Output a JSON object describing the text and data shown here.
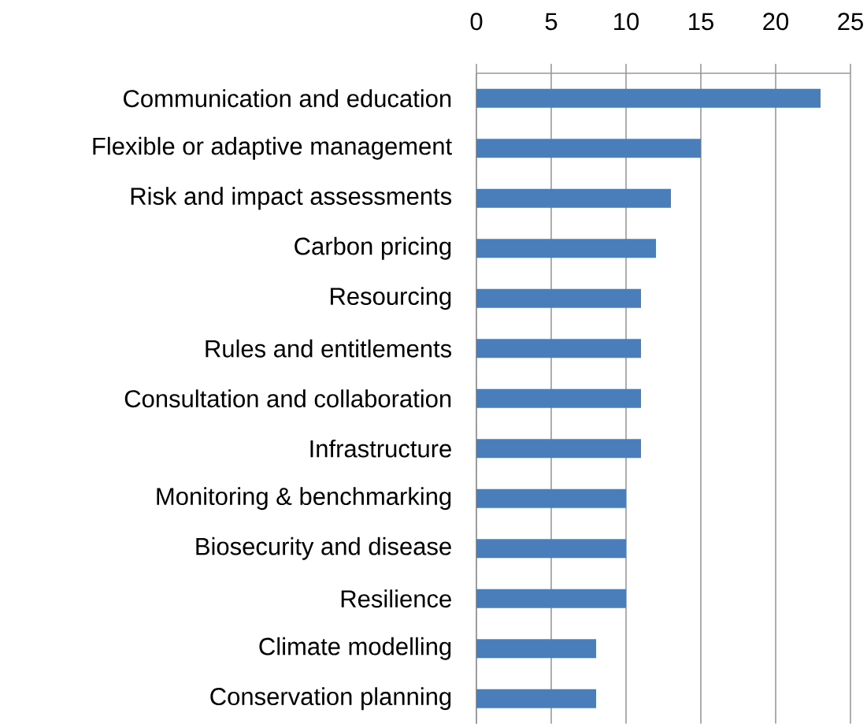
{
  "chart_data": {
    "type": "bar",
    "orientation": "horizontal",
    "categories": [
      "Communication and education",
      "Flexible or adaptive management",
      "Risk and impact assessments",
      "Carbon pricing",
      "Resourcing",
      "Rules and entitlements",
      "Consultation and collaboration",
      "Infrastructure",
      "Monitoring & benchmarking",
      "Biosecurity and disease",
      "Resilience",
      "Climate modelling",
      "Conservation planning"
    ],
    "values": [
      23,
      15,
      13,
      12,
      11,
      11,
      11,
      11,
      10,
      10,
      10,
      8,
      8
    ],
    "color": "#4a7ebb",
    "xlim": [
      0,
      25
    ],
    "xticks": [
      0,
      5,
      10,
      15,
      20,
      25
    ],
    "grid": "x"
  }
}
